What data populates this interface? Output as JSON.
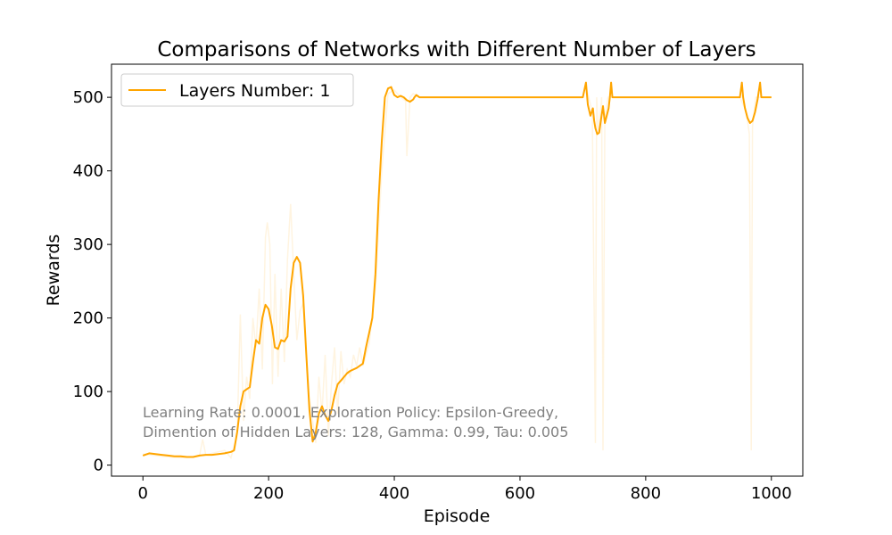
{
  "chart_data": {
    "type": "line",
    "title": "Comparisons of Networks with Different Number of Layers",
    "xlabel": "Episode",
    "ylabel": "Rewards",
    "xlim": [
      -50,
      1050
    ],
    "ylim": [
      -15,
      545
    ],
    "xticks": [
      0,
      200,
      400,
      600,
      800,
      1000
    ],
    "yticks": [
      0,
      100,
      200,
      300,
      400,
      500
    ],
    "grid": false,
    "legend_position": "upper-left",
    "color": "#ffa500",
    "annotation": [
      "Learning Rate: 0.0001, Exploration Policy: Epsilon-Greedy,",
      "Dimention of Hidden Layers: 128, Gamma: 0.99, Tau: 0.005"
    ],
    "series": [
      {
        "name": "Layers Number: 1",
        "role": "smoothed",
        "x": [
          0,
          10,
          20,
          30,
          40,
          50,
          60,
          70,
          80,
          90,
          100,
          110,
          120,
          130,
          140,
          145,
          150,
          155,
          160,
          165,
          170,
          175,
          180,
          185,
          190,
          195,
          200,
          205,
          210,
          215,
          220,
          225,
          230,
          235,
          240,
          245,
          250,
          255,
          260,
          265,
          270,
          275,
          280,
          285,
          290,
          295,
          300,
          305,
          310,
          315,
          320,
          325,
          330,
          340,
          350,
          355,
          360,
          365,
          370,
          375,
          380,
          385,
          390,
          395,
          400,
          405,
          410,
          415,
          420,
          425,
          430,
          432,
          435,
          440,
          450,
          500,
          550,
          600,
          650,
          700,
          705,
          708,
          712,
          716,
          718,
          720,
          723,
          726,
          729,
          732,
          735,
          738,
          741,
          743,
          745,
          747,
          750,
          760,
          800,
          850,
          900,
          950,
          953,
          955,
          958,
          962,
          966,
          970,
          974,
          978,
          982,
          984,
          986,
          988,
          990,
          1000
        ],
        "y": [
          13,
          16,
          15,
          14,
          13,
          12,
          12,
          11,
          11,
          13,
          14,
          14,
          15,
          16,
          18,
          20,
          45,
          80,
          100,
          103,
          106,
          140,
          170,
          165,
          200,
          218,
          212,
          190,
          160,
          158,
          170,
          168,
          175,
          240,
          275,
          283,
          275,
          230,
          150,
          75,
          32,
          45,
          70,
          80,
          68,
          60,
          75,
          95,
          110,
          115,
          120,
          125,
          128,
          132,
          138,
          160,
          180,
          200,
          260,
          360,
          440,
          500,
          512,
          514,
          503,
          500,
          502,
          500,
          496,
          494,
          497,
          500,
          503,
          500,
          500,
          500,
          500,
          500,
          500,
          500,
          520,
          490,
          475,
          485,
          468,
          458,
          450,
          452,
          470,
          488,
          465,
          475,
          485,
          500,
          520,
          500,
          500,
          500,
          500,
          500,
          500,
          500,
          520,
          500,
          485,
          472,
          465,
          468,
          480,
          497,
          520,
          500,
          500,
          500,
          500,
          500
        ]
      },
      {
        "name": "",
        "role": "raw",
        "x": [
          0,
          30,
          60,
          90,
          95,
          100,
          130,
          140,
          150,
          155,
          160,
          165,
          170,
          175,
          180,
          185,
          190,
          195,
          198,
          202,
          206,
          210,
          215,
          220,
          225,
          230,
          235,
          240,
          245,
          250,
          255,
          260,
          265,
          270,
          275,
          280,
          285,
          290,
          295,
          300,
          305,
          310,
          315,
          320,
          325,
          330,
          335,
          340,
          345,
          350,
          360,
          370,
          380,
          390,
          400,
          410,
          418,
          420,
          425,
          430,
          440,
          500,
          600,
          700,
          705,
          715,
          720,
          722,
          725,
          730,
          732,
          735,
          740,
          750,
          800,
          900,
          950,
          960,
          965,
          968,
          970,
          975,
          980,
          1000
        ],
        "y": [
          15,
          12,
          10,
          12,
          35,
          14,
          20,
          10,
          40,
          205,
          60,
          120,
          90,
          200,
          160,
          240,
          130,
          310,
          330,
          300,
          110,
          260,
          120,
          240,
          140,
          280,
          355,
          260,
          170,
          210,
          220,
          150,
          90,
          60,
          30,
          120,
          70,
          150,
          40,
          110,
          160,
          70,
          155,
          110,
          130,
          120,
          150,
          135,
          160,
          135,
          165,
          240,
          400,
          505,
          510,
          500,
          495,
          420,
          500,
          505,
          500,
          500,
          500,
          500,
          515,
          480,
          30,
          500,
          450,
          500,
          20,
          470,
          500,
          500,
          500,
          500,
          500,
          480,
          450,
          20,
          460,
          500,
          500,
          500
        ]
      }
    ]
  }
}
